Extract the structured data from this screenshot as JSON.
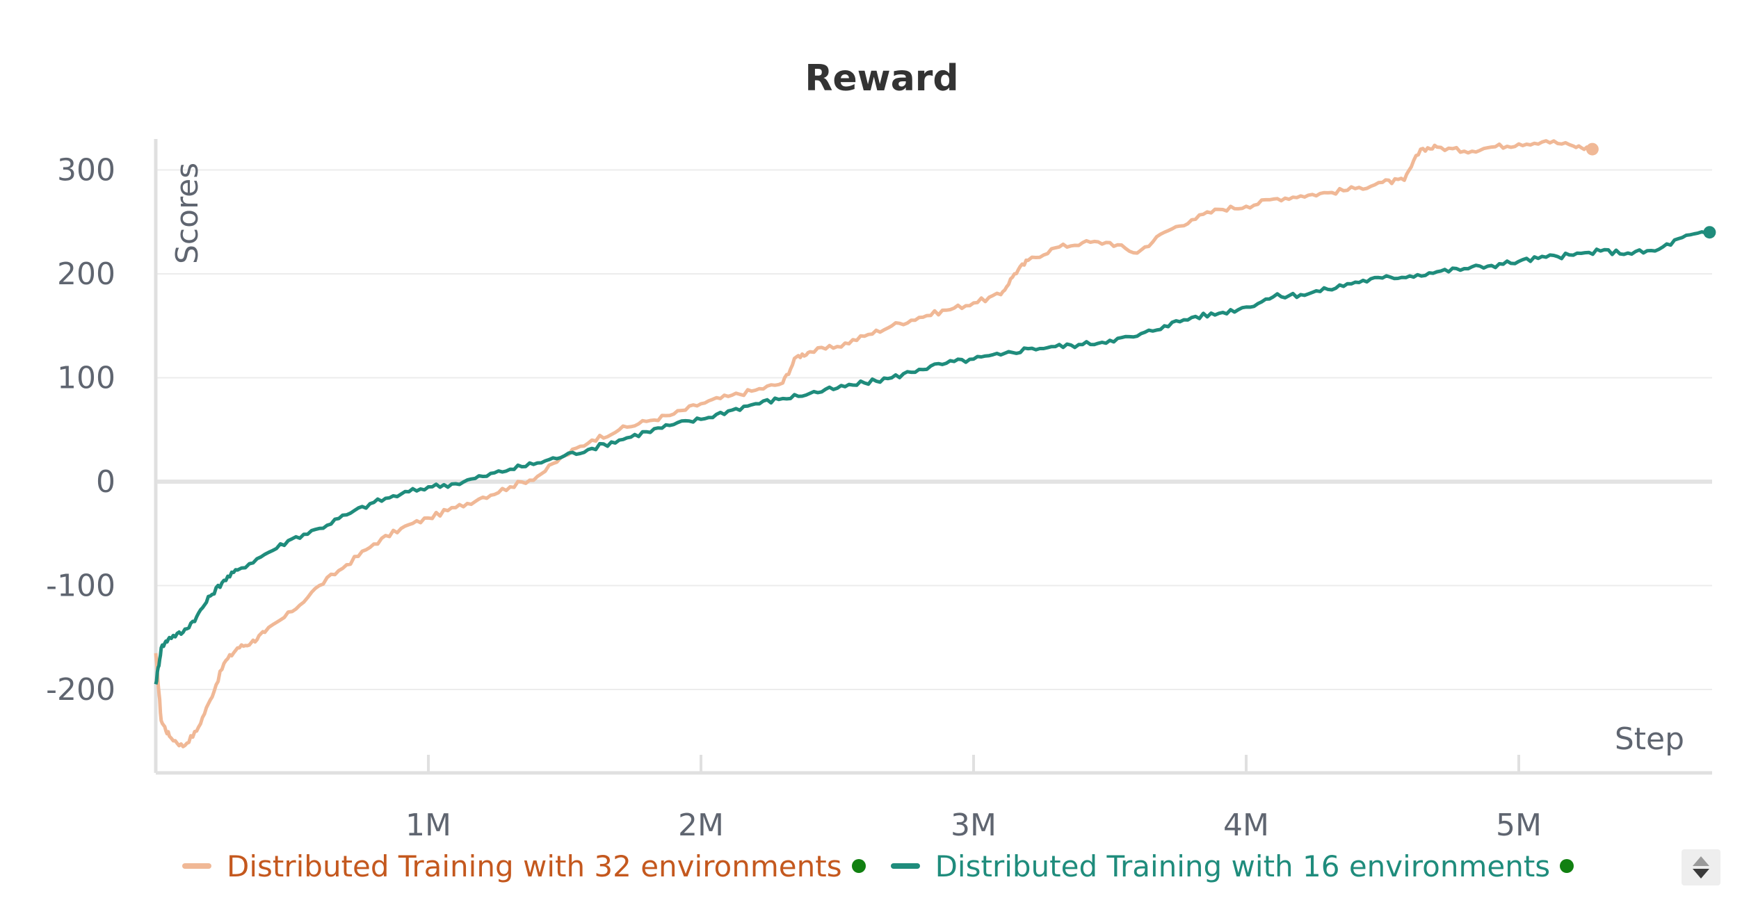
{
  "chart_data": {
    "type": "line",
    "title": "Reward",
    "xlabel": "Step",
    "ylabel": "Scores",
    "xlim": [
      0,
      5700000
    ],
    "ylim": [
      -275,
      335
    ],
    "x_ticks": [
      {
        "value": 1000000,
        "label": "1M"
      },
      {
        "value": 2000000,
        "label": "2M"
      },
      {
        "value": 3000000,
        "label": "3M"
      },
      {
        "value": 4000000,
        "label": "4M"
      },
      {
        "value": 5000000,
        "label": "5M"
      }
    ],
    "y_ticks": [
      {
        "value": 300,
        "label": "300"
      },
      {
        "value": 200,
        "label": "200"
      },
      {
        "value": 100,
        "label": "100"
      },
      {
        "value": 0,
        "label": "0"
      },
      {
        "value": -100,
        "label": "-100"
      },
      {
        "value": -200,
        "label": "-200"
      }
    ],
    "grid": true,
    "legend_position": "bottom-left",
    "series": [
      {
        "name": "Distributed Training with 32 environments",
        "color": "#f0b896",
        "label_color": "#c4581e",
        "status_color": "#118011",
        "x": [
          0,
          20000,
          50000,
          100000,
          150000,
          200000,
          250000,
          300000,
          350000,
          400000,
          500000,
          600000,
          700000,
          800000,
          900000,
          1000000,
          1100000,
          1200000,
          1300000,
          1400000,
          1500000,
          1600000,
          1700000,
          1800000,
          1900000,
          2000000,
          2100000,
          2200000,
          2300000,
          2350000,
          2400000,
          2500000,
          2600000,
          2700000,
          2800000,
          2900000,
          3000000,
          3100000,
          3150000,
          3200000,
          3300000,
          3400000,
          3500000,
          3600000,
          3700000,
          3800000,
          3900000,
          4000000,
          4100000,
          4200000,
          4300000,
          4400000,
          4500000,
          4580000,
          4640000,
          4700000,
          4800000,
          4900000,
          5000000,
          5100000,
          5200000,
          5270000
        ],
        "values": [
          -165,
          -230,
          -245,
          -255,
          -240,
          -210,
          -175,
          -160,
          -155,
          -145,
          -125,
          -100,
          -80,
          -60,
          -45,
          -35,
          -25,
          -15,
          -5,
          5,
          25,
          40,
          50,
          58,
          65,
          75,
          82,
          88,
          95,
          120,
          125,
          130,
          140,
          150,
          158,
          165,
          172,
          180,
          200,
          213,
          225,
          230,
          230,
          220,
          240,
          252,
          262,
          265,
          272,
          275,
          278,
          282,
          288,
          290,
          320,
          322,
          318,
          322,
          325,
          328,
          323,
          320
        ]
      },
      {
        "name": "Distributed Training with 16 environments",
        "color": "#1f8c7c",
        "label_color": "#1f8c7c",
        "status_color": "#118011",
        "x": [
          0,
          20000,
          50000,
          100000,
          150000,
          200000,
          250000,
          300000,
          400000,
          500000,
          600000,
          700000,
          800000,
          900000,
          1000000,
          1100000,
          1200000,
          1300000,
          1400000,
          1500000,
          1600000,
          1700000,
          1800000,
          1900000,
          2000000,
          2100000,
          2200000,
          2300000,
          2400000,
          2500000,
          2600000,
          2700000,
          2800000,
          2900000,
          3000000,
          3100000,
          3200000,
          3300000,
          3400000,
          3500000,
          3600000,
          3700000,
          3800000,
          3900000,
          4000000,
          4100000,
          4200000,
          4300000,
          4400000,
          4500000,
          4600000,
          4700000,
          4800000,
          4900000,
          5000000,
          5100000,
          5200000,
          5300000,
          5400000,
          5500000,
          5600000,
          5700000
        ],
        "values": [
          -195,
          -160,
          -150,
          -145,
          -130,
          -110,
          -95,
          -85,
          -70,
          -55,
          -45,
          -32,
          -20,
          -12,
          -5,
          -2,
          5,
          12,
          18,
          25,
          32,
          40,
          48,
          55,
          60,
          68,
          75,
          80,
          85,
          90,
          95,
          100,
          108,
          114,
          118,
          122,
          128,
          130,
          132,
          136,
          140,
          150,
          158,
          162,
          168,
          178,
          180,
          185,
          192,
          196,
          198,
          202,
          205,
          208,
          212,
          216,
          218,
          222,
          220,
          222,
          235,
          240
        ]
      }
    ]
  }
}
